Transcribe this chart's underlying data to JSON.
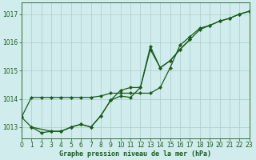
{
  "title": "Graphe pression niveau de la mer (hPa)",
  "bg_color": "#d0ecec",
  "line_color": "#1a5c1a",
  "grid_color": "#a8cccc",
  "xlim": [
    0,
    23
  ],
  "ylim": [
    1012.6,
    1017.4
  ],
  "yticks": [
    1013,
    1014,
    1015,
    1016,
    1017
  ],
  "xticks": [
    0,
    1,
    2,
    3,
    4,
    5,
    6,
    7,
    8,
    9,
    10,
    11,
    12,
    13,
    14,
    15,
    16,
    17,
    18,
    19,
    20,
    21,
    22,
    23
  ],
  "series": [
    {
      "x": [
        0,
        1,
        2,
        3,
        4,
        5,
        6,
        7,
        8,
        9,
        10,
        11,
        12,
        13,
        14,
        15,
        16,
        17,
        18,
        19,
        20,
        21,
        22,
        23
      ],
      "y": [
        1013.35,
        1014.05,
        1014.05,
        1014.05,
        1014.05,
        1014.05,
        1014.05,
        1014.05,
        1014.1,
        1014.2,
        1014.2,
        1014.2,
        1014.2,
        1014.2,
        1014.4,
        1015.1,
        1015.9,
        1016.2,
        1016.5,
        1016.6,
        1016.75,
        1016.85,
        1017.0,
        1017.1
      ]
    },
    {
      "x": [
        0,
        1,
        2,
        3,
        4,
        5,
        6,
        7,
        8,
        9,
        10,
        11,
        12,
        13,
        14,
        15,
        16,
        17,
        18,
        19,
        20,
        21,
        22,
        23
      ],
      "y": [
        1013.35,
        1013.0,
        1012.8,
        1012.85,
        1012.85,
        1013.0,
        1013.1,
        1013.0,
        1013.4,
        1013.95,
        1014.1,
        1014.05,
        1014.4,
        1015.75,
        1015.1,
        1015.35,
        1015.75,
        1016.1,
        1016.45,
        1016.6,
        1016.75,
        1016.85,
        1017.0,
        1017.1
      ]
    },
    {
      "x": [
        1,
        3,
        4,
        5,
        6,
        7,
        8,
        9,
        10,
        11,
        12,
        13,
        14,
        15,
        16,
        17
      ],
      "y": [
        1013.0,
        1012.85,
        1012.85,
        1013.0,
        1013.1,
        1013.0,
        1013.4,
        1013.95,
        1014.3,
        1014.4,
        1014.4,
        1015.85,
        1015.1,
        1015.35,
        1015.75,
        1016.1
      ]
    }
  ],
  "marker": "D",
  "markersize": 2.2,
  "linewidth": 0.9,
  "tick_fontsize": 5.5,
  "xlabel_fontsize": 6.0
}
